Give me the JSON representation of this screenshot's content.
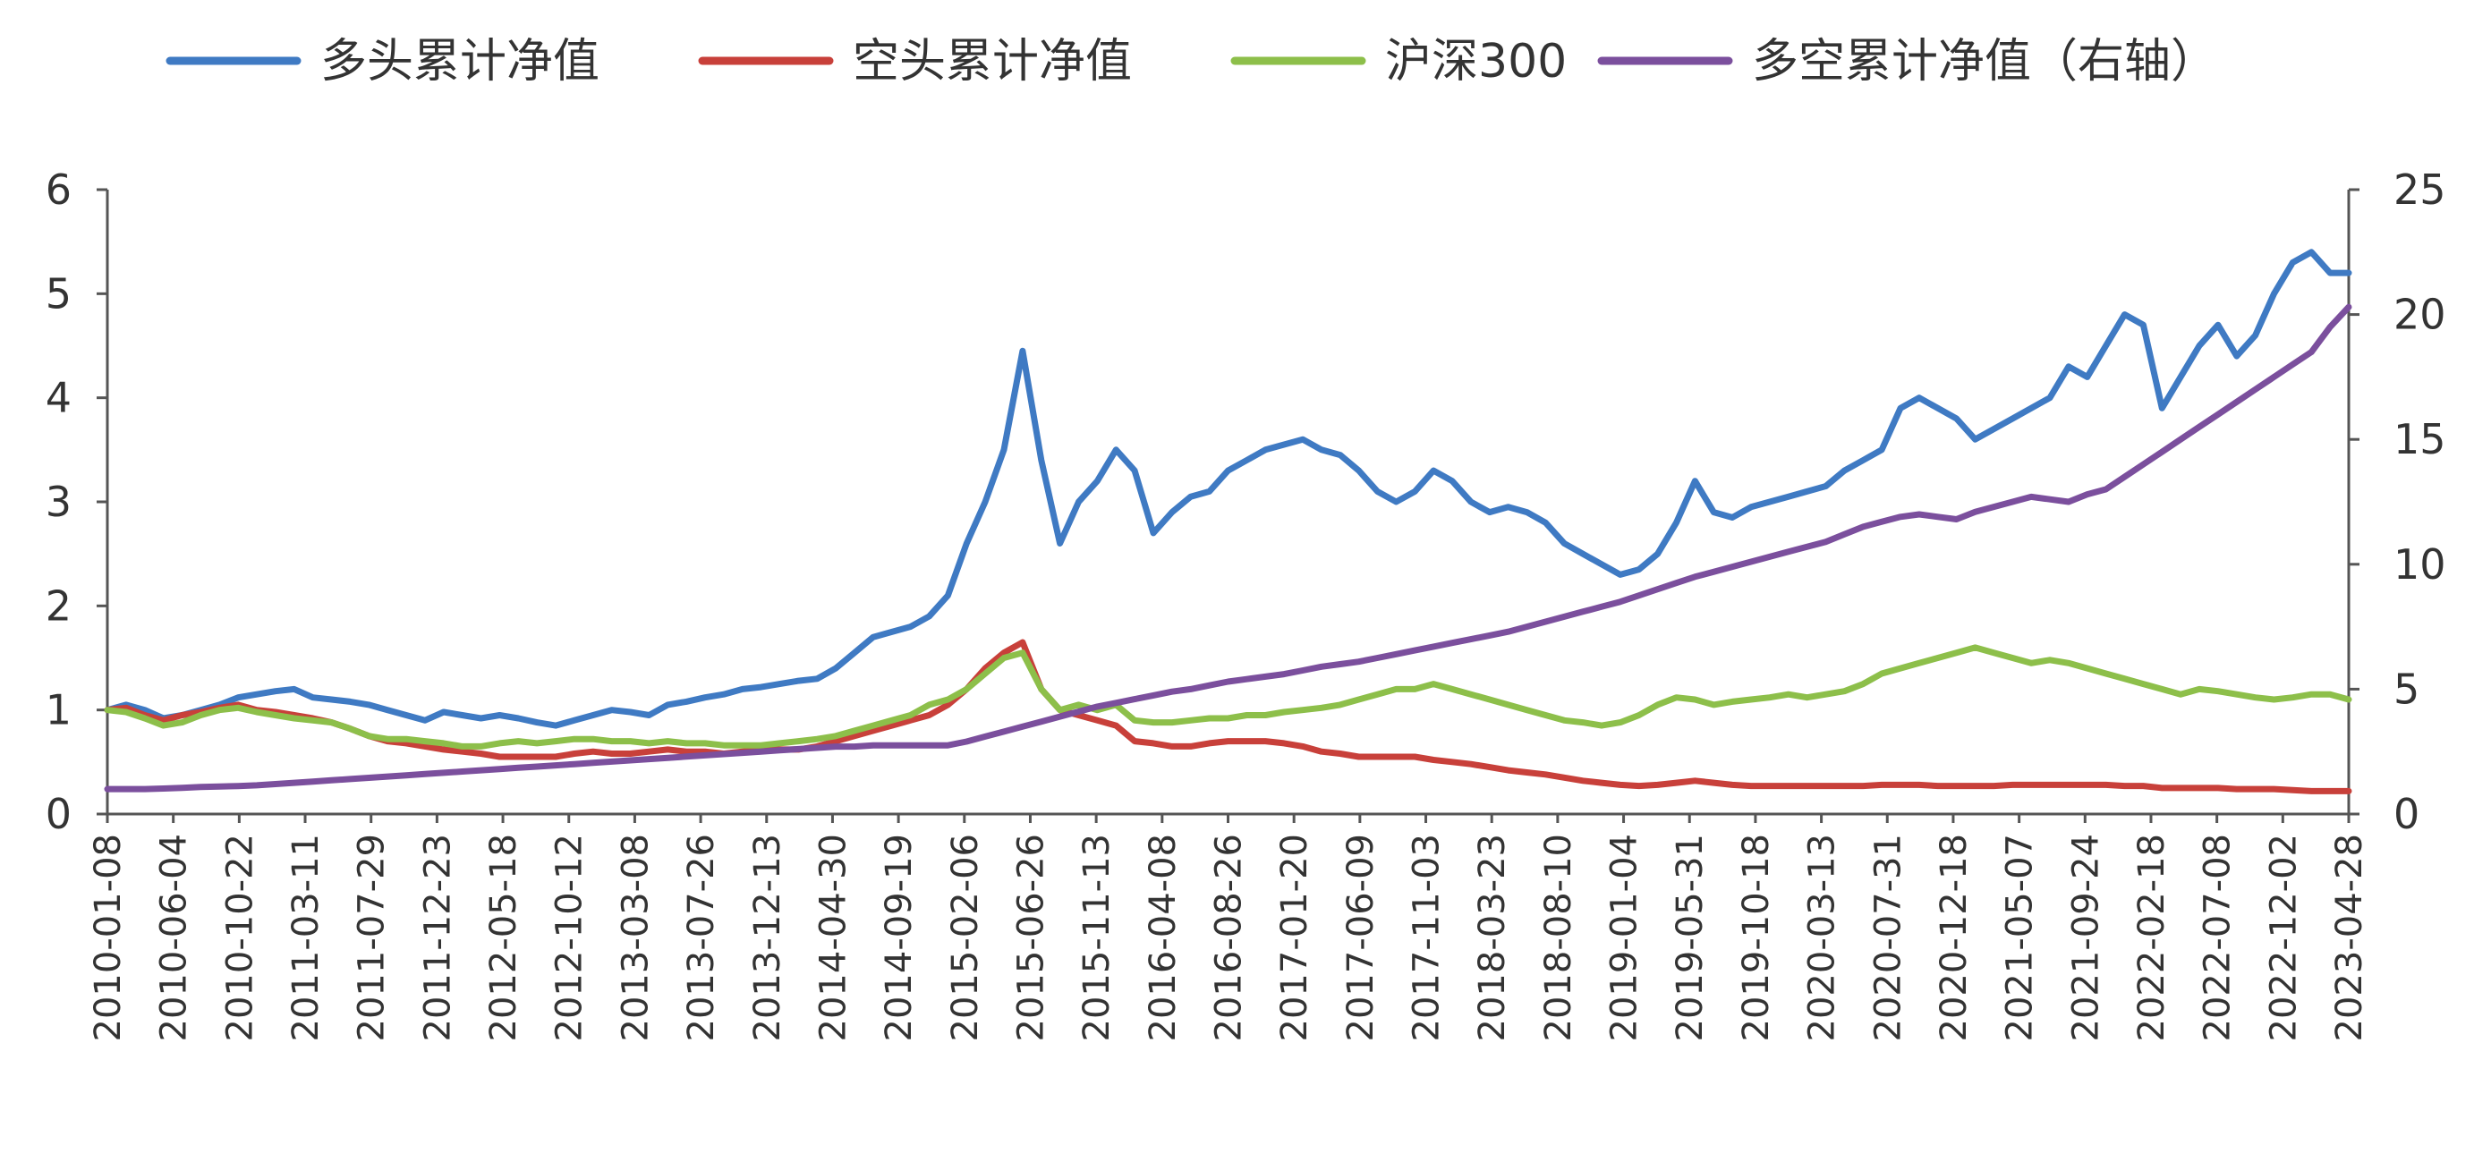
{
  "chart_data": {
    "type": "line",
    "legend_position": "top",
    "grid": false,
    "title": "",
    "left_axis": {
      "ylim": [
        0,
        6
      ],
      "ticks": [
        0,
        1,
        2,
        3,
        4,
        5,
        6
      ]
    },
    "right_axis": {
      "ylim": [
        0,
        25
      ],
      "ticks": [
        0,
        5,
        10,
        15,
        20,
        25
      ]
    },
    "x_tick_labels": [
      "2010-01-08",
      "2010-06-04",
      "2010-10-22",
      "2011-03-11",
      "2011-07-29",
      "2011-12-23",
      "2012-05-18",
      "2012-10-12",
      "2013-03-08",
      "2013-07-26",
      "2013-12-13",
      "2014-04-30",
      "2014-09-19",
      "2015-02-06",
      "2015-06-26",
      "2015-11-13",
      "2016-04-08",
      "2016-08-26",
      "2017-01-20",
      "2017-06-09",
      "2017-11-03",
      "2018-03-23",
      "2018-08-10",
      "2019-01-04",
      "2019-05-31",
      "2019-10-18",
      "2020-03-13",
      "2020-07-31",
      "2020-12-18",
      "2021-05-07",
      "2021-09-24",
      "2022-02-18",
      "2022-07-08",
      "2022-12-02",
      "2023-04-28"
    ],
    "series": [
      {
        "name": "多头累计净值",
        "color": "#3f7ac3",
        "axis": "left",
        "values": [
          1.0,
          1.05,
          1.0,
          0.92,
          0.95,
          1.0,
          1.05,
          1.12,
          1.15,
          1.18,
          1.2,
          1.12,
          1.1,
          1.08,
          1.05,
          1.0,
          0.95,
          0.9,
          0.98,
          0.95,
          0.92,
          0.95,
          0.92,
          0.88,
          0.85,
          0.9,
          0.95,
          1.0,
          0.98,
          0.95,
          1.05,
          1.08,
          1.12,
          1.15,
          1.2,
          1.22,
          1.25,
          1.28,
          1.3,
          1.4,
          1.55,
          1.7,
          1.75,
          1.8,
          1.9,
          2.1,
          2.6,
          3.0,
          3.5,
          4.45,
          3.4,
          2.6,
          3.0,
          3.2,
          3.5,
          3.3,
          2.7,
          2.9,
          3.05,
          3.1,
          3.3,
          3.4,
          3.5,
          3.55,
          3.6,
          3.5,
          3.45,
          3.3,
          3.1,
          3.0,
          3.1,
          3.3,
          3.2,
          3.0,
          2.9,
          2.95,
          2.9,
          2.8,
          2.6,
          2.5,
          2.4,
          2.3,
          2.35,
          2.5,
          2.8,
          3.2,
          2.9,
          2.85,
          2.95,
          3.0,
          3.05,
          3.1,
          3.15,
          3.3,
          3.4,
          3.5,
          3.9,
          4.0,
          3.9,
          3.8,
          3.6,
          3.7,
          3.8,
          3.9,
          4.0,
          4.3,
          4.2,
          4.5,
          4.8,
          4.7,
          3.9,
          4.2,
          4.5,
          4.7,
          4.4,
          4.6,
          5.0,
          5.3,
          5.4,
          5.2,
          5.2
        ]
      },
      {
        "name": "空头累计净值",
        "color": "#c8403a",
        "axis": "left",
        "values": [
          1.0,
          1.02,
          0.95,
          0.9,
          0.95,
          0.98,
          1.02,
          1.05,
          1.0,
          0.98,
          0.95,
          0.92,
          0.88,
          0.82,
          0.75,
          0.7,
          0.68,
          0.65,
          0.62,
          0.6,
          0.58,
          0.55,
          0.55,
          0.55,
          0.55,
          0.58,
          0.6,
          0.58,
          0.58,
          0.6,
          0.62,
          0.6,
          0.6,
          0.58,
          0.6,
          0.62,
          0.62,
          0.62,
          0.65,
          0.7,
          0.75,
          0.8,
          0.85,
          0.9,
          0.95,
          1.05,
          1.2,
          1.4,
          1.55,
          1.65,
          1.2,
          1.0,
          0.95,
          0.9,
          0.85,
          0.7,
          0.68,
          0.65,
          0.65,
          0.68,
          0.7,
          0.7,
          0.7,
          0.68,
          0.65,
          0.6,
          0.58,
          0.55,
          0.55,
          0.55,
          0.55,
          0.52,
          0.5,
          0.48,
          0.45,
          0.42,
          0.4,
          0.38,
          0.35,
          0.32,
          0.3,
          0.28,
          0.27,
          0.28,
          0.3,
          0.32,
          0.3,
          0.28,
          0.27,
          0.27,
          0.27,
          0.27,
          0.27,
          0.27,
          0.27,
          0.28,
          0.28,
          0.28,
          0.27,
          0.27,
          0.27,
          0.27,
          0.28,
          0.28,
          0.28,
          0.28,
          0.28,
          0.28,
          0.27,
          0.27,
          0.25,
          0.25,
          0.25,
          0.25,
          0.24,
          0.24,
          0.24,
          0.23,
          0.22,
          0.22,
          0.22
        ]
      },
      {
        "name": "沪深300",
        "color": "#8dbf4a",
        "axis": "left",
        "values": [
          1.0,
          0.98,
          0.92,
          0.85,
          0.88,
          0.95,
          1.0,
          1.02,
          0.98,
          0.95,
          0.92,
          0.9,
          0.88,
          0.82,
          0.75,
          0.72,
          0.72,
          0.7,
          0.68,
          0.65,
          0.65,
          0.68,
          0.7,
          0.68,
          0.7,
          0.72,
          0.72,
          0.7,
          0.7,
          0.68,
          0.7,
          0.68,
          0.68,
          0.66,
          0.66,
          0.66,
          0.68,
          0.7,
          0.72,
          0.75,
          0.8,
          0.85,
          0.9,
          0.95,
          1.05,
          1.1,
          1.2,
          1.35,
          1.5,
          1.55,
          1.2,
          1.0,
          1.05,
          1.0,
          1.05,
          0.9,
          0.88,
          0.88,
          0.9,
          0.92,
          0.92,
          0.95,
          0.95,
          0.98,
          1.0,
          1.02,
          1.05,
          1.1,
          1.15,
          1.2,
          1.2,
          1.25,
          1.2,
          1.15,
          1.1,
          1.05,
          1.0,
          0.95,
          0.9,
          0.88,
          0.85,
          0.88,
          0.95,
          1.05,
          1.12,
          1.1,
          1.05,
          1.08,
          1.1,
          1.12,
          1.15,
          1.12,
          1.15,
          1.18,
          1.25,
          1.35,
          1.4,
          1.45,
          1.5,
          1.55,
          1.6,
          1.55,
          1.5,
          1.45,
          1.48,
          1.45,
          1.4,
          1.35,
          1.3,
          1.25,
          1.2,
          1.15,
          1.2,
          1.18,
          1.15,
          1.12,
          1.1,
          1.12,
          1.15,
          1.15,
          1.1
        ]
      },
      {
        "name": "多空累计净值（右轴）",
        "color": "#7b4f9d",
        "axis": "right",
        "values": [
          1.0,
          1.0,
          1.0,
          1.02,
          1.05,
          1.08,
          1.1,
          1.12,
          1.15,
          1.2,
          1.25,
          1.3,
          1.35,
          1.4,
          1.45,
          1.5,
          1.55,
          1.6,
          1.65,
          1.7,
          1.75,
          1.8,
          1.85,
          1.9,
          1.95,
          2.0,
          2.05,
          2.1,
          2.15,
          2.2,
          2.25,
          2.3,
          2.35,
          2.4,
          2.45,
          2.5,
          2.55,
          2.6,
          2.65,
          2.7,
          2.7,
          2.75,
          2.75,
          2.75,
          2.75,
          2.75,
          2.9,
          3.1,
          3.3,
          3.5,
          3.7,
          3.9,
          4.1,
          4.3,
          4.45,
          4.6,
          4.75,
          4.9,
          5.0,
          5.15,
          5.3,
          5.4,
          5.5,
          5.6,
          5.75,
          5.9,
          6.0,
          6.1,
          6.25,
          6.4,
          6.55,
          6.7,
          6.85,
          7.0,
          7.15,
          7.3,
          7.5,
          7.7,
          7.9,
          8.1,
          8.3,
          8.5,
          8.75,
          9.0,
          9.25,
          9.5,
          9.7,
          9.9,
          10.1,
          10.3,
          10.5,
          10.7,
          10.9,
          11.2,
          11.5,
          11.7,
          11.9,
          12.0,
          11.9,
          11.8,
          12.1,
          12.3,
          12.5,
          12.7,
          12.6,
          12.5,
          12.8,
          13.0,
          13.5,
          14.0,
          14.5,
          15.0,
          15.5,
          16.0,
          16.5,
          17.0,
          17.5,
          18.0,
          18.5,
          19.5,
          20.3
        ]
      }
    ]
  }
}
